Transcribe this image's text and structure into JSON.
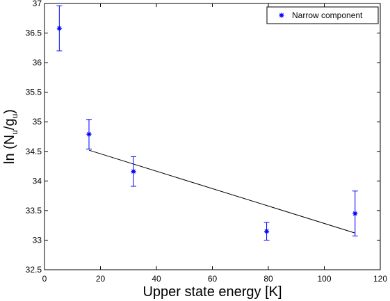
{
  "chart_data": {
    "type": "scatter",
    "xlabel": "Upper state energy [K]",
    "ylabel": {
      "prefix": "ln (N",
      "sub1": "u",
      "mid": "/g",
      "sub2": "u",
      "suffix": ")"
    },
    "xlim": [
      0,
      120
    ],
    "ylim": [
      32.5,
      37
    ],
    "xticks": [
      0,
      20,
      40,
      60,
      80,
      100,
      120
    ],
    "yticks": [
      32.5,
      33,
      33.5,
      34,
      34.5,
      35,
      35.5,
      36,
      36.5,
      37
    ],
    "legend": {
      "position": "top-right",
      "entries": [
        "Narrow component"
      ]
    },
    "series": [
      {
        "name": "Narrow component",
        "color": "#0000ff",
        "marker": "asterisk",
        "points": [
          {
            "x": 5.3,
            "y": 36.58,
            "err_low": 36.2,
            "err_high": 36.96
          },
          {
            "x": 15.9,
            "y": 34.79,
            "err_low": 34.54,
            "err_high": 35.04
          },
          {
            "x": 31.8,
            "y": 34.16,
            "err_low": 33.91,
            "err_high": 34.41
          },
          {
            "x": 79.4,
            "y": 33.15,
            "err_low": 33.0,
            "err_high": 33.3
          },
          {
            "x": 111.0,
            "y": 33.45,
            "err_low": 33.07,
            "err_high": 33.83
          }
        ]
      }
    ],
    "fit_line": {
      "color": "#000000",
      "x": [
        15.9,
        111.0
      ],
      "y": [
        34.52,
        33.12
      ]
    },
    "grid": false
  }
}
